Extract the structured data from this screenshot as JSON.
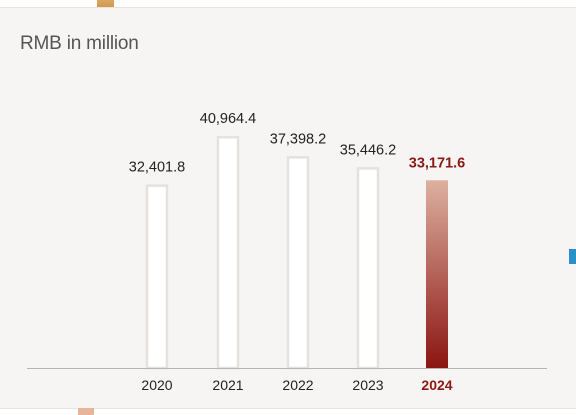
{
  "chart_data": {
    "type": "bar",
    "unit_label": "RMB in million",
    "categories": [
      "2020",
      "2021",
      "2022",
      "2023",
      "2024"
    ],
    "values": [
      32401.8,
      40964.4,
      37398.2,
      35446.2,
      33171.6
    ],
    "value_labels": [
      "32,401.8",
      "40,964.4",
      "37,398.2",
      "35,446.2",
      "33,171.6"
    ],
    "highlight_index": 4,
    "ylim": [
      0,
      44000
    ],
    "colors": {
      "bar_outline": "#e4e1de",
      "bar_fill": "#ffffff",
      "highlight_top": "#ddb0a0",
      "highlight_bottom": "#8b1511",
      "highlight_text": "#8b1a14",
      "text": "#222222",
      "axis": "#b8b4b0"
    }
  }
}
